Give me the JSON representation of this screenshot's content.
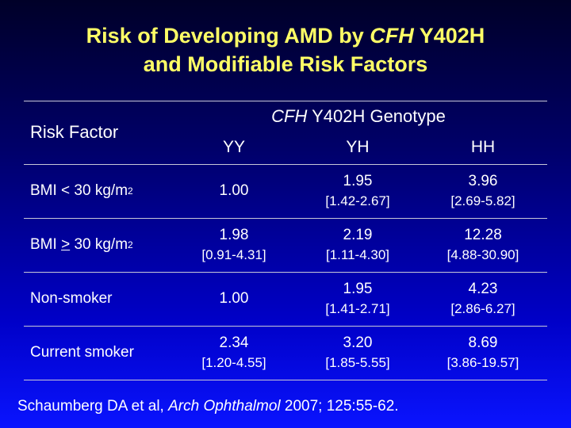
{
  "title": {
    "line1_start": "Risk of Developing AMD by",
    "line1_gene": "CFH",
    "line1_end": "Y402H",
    "line2": "and Modifiable Risk Factors"
  },
  "table": {
    "risk_header": "Risk Factor",
    "group_gene": "CFH",
    "group_rest": "Y402H Genotype",
    "columns": [
      "YY",
      "YH",
      "HH"
    ],
    "rows": [
      {
        "label_start": "BMI < 30 kg/m",
        "label_sym": "",
        "label_end": "",
        "sup": "2",
        "cells": [
          {
            "value": "1.00"
          },
          {
            "value": "1.95",
            "ci": "[1.42-2.67]"
          },
          {
            "value": "3.96",
            "ci": "[2.69-5.82]"
          }
        ]
      },
      {
        "label_start": "BMI ",
        "label_sym": ">",
        "label_end": " 30 kg/m",
        "sup": "2",
        "cells": [
          {
            "value": "1.98",
            "ci": "[0.91-4.31]"
          },
          {
            "value": "2.19",
            "ci": "[1.11-4.30]"
          },
          {
            "value": "12.28",
            "ci": "[4.88-30.90]"
          }
        ]
      },
      {
        "label_start": "Non-smoker",
        "label_sym": "",
        "label_end": "",
        "sup": "",
        "cells": [
          {
            "value": "1.00"
          },
          {
            "value": "1.95",
            "ci": "[1.41-2.71]"
          },
          {
            "value": "4.23",
            "ci": "[2.86-6.27]"
          }
        ]
      },
      {
        "label_start": "Current smoker",
        "label_sym": "",
        "label_end": "",
        "sup": "",
        "cells": [
          {
            "value": "2.34",
            "ci": "[1.20-4.55]"
          },
          {
            "value": "3.20",
            "ci": "[1.85-5.55]"
          },
          {
            "value": "8.69",
            "ci": "[3.86-19.57]"
          }
        ]
      }
    ]
  },
  "citation": {
    "authors": "Schaumberg DA et al,",
    "journal": "Arch Ophthalmol",
    "details": "2007; 125:55-62."
  }
}
